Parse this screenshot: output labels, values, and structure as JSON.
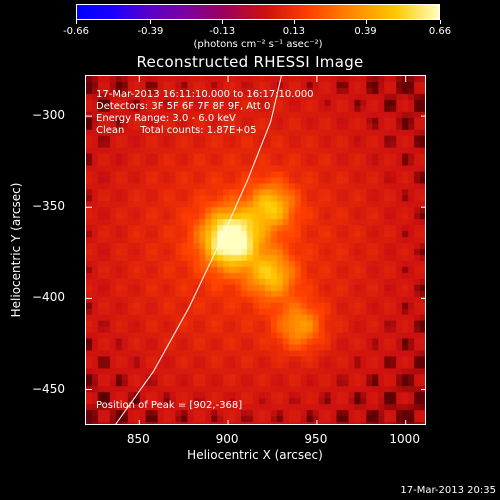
{
  "colorbar": {
    "tick_labels": [
      "-0.66",
      "-0.39",
      "-0.13",
      "0.13",
      "0.39",
      "0.66"
    ],
    "tick_values": [
      -0.66,
      -0.39,
      -0.13,
      0.13,
      0.39,
      0.66
    ],
    "range": [
      -0.66,
      0.66
    ],
    "unit_label": "(photons cm⁻² s⁻¹ asec⁻²)"
  },
  "title": "Reconstructed RHESSI Image",
  "annotations": {
    "time_range": "17-Mar-2013 16:11:10.000 to 16:17:10.000",
    "detectors": "Detectors: 3F 5F 6F 7F 8F 9F, Att 0",
    "energy": "Energy Range: 3.0 - 6.0 keV",
    "clean": "Clean     Total counts: 1.87E+05",
    "peak": "Position of Peak = [902,-368]"
  },
  "axes": {
    "xlabel": "Heliocentric X (arcsec)",
    "ylabel": "Heliocentric Y (arcsec)",
    "xlim": [
      820,
      1012
    ],
    "ylim": [
      -470,
      -278
    ],
    "x_ticks": [
      850,
      900,
      950,
      1000
    ],
    "y_ticks": [
      -300,
      -350,
      -400,
      -450
    ],
    "x_tick_labels": [
      "850",
      "900",
      "950",
      "1000"
    ],
    "y_tick_labels": [
      "−300",
      "−350",
      "−400",
      "−450"
    ]
  },
  "image": {
    "sources": [
      {
        "x": 902,
        "y": -368,
        "peak": 1.0
      },
      {
        "x": 925,
        "y": -350,
        "peak": 0.55
      },
      {
        "x": 925,
        "y": -388,
        "peak": 0.55
      },
      {
        "x": 941,
        "y": -416,
        "peak": 0.45
      }
    ],
    "limb_points": [
      [
        836,
        -470
      ],
      [
        858,
        -440
      ],
      [
        878,
        -405
      ],
      [
        896,
        -368
      ],
      [
        911,
        -335
      ],
      [
        924,
        -303
      ],
      [
        930,
        -278
      ]
    ]
  },
  "timestamp": "17-Mar-2013 20:35"
}
